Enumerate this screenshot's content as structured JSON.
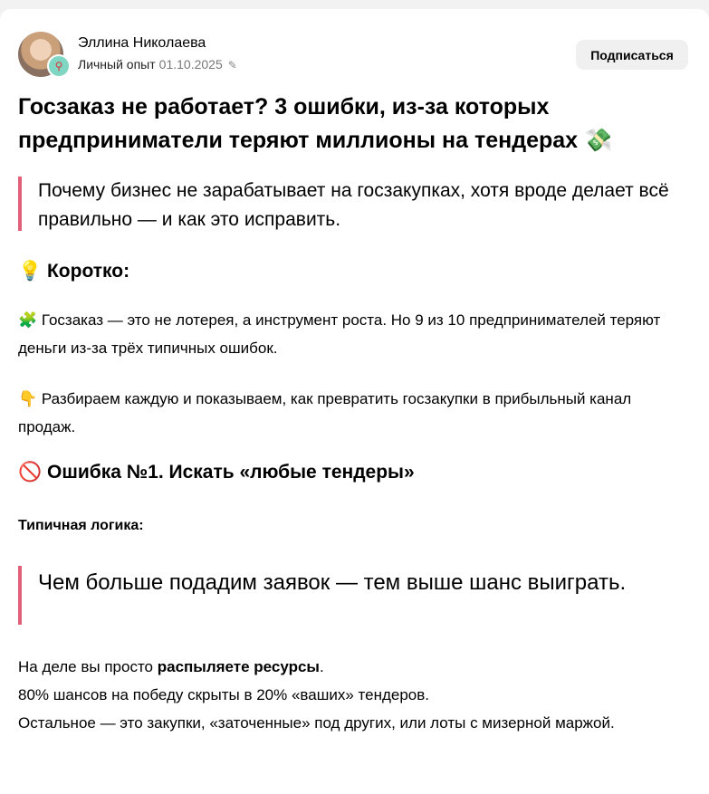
{
  "author": {
    "name": "Эллина Николаева",
    "category": "Личный опыт",
    "date": "01.10.2025"
  },
  "subscribe_label": "Подписаться",
  "title": "Госзаказ не работает? 3 ошибки, из-за которых предприниматели теряют миллионы на тендерах 💸",
  "lead": "Почему бизнес не зарабатывает на госзакупках, хотя вроде делает всё правильно — и как это исправить.",
  "short_heading": "💡 Коротко:",
  "short_p1": "🧩 Госзаказ — это не лотерея, а инструмент роста. Но 9 из 10 предпринимателей теряют деньги из-за трёх типичных ошибок.",
  "short_p2": "👇 Разбираем каждую и показываем, как превратить госзакупки в прибыльный канал продаж.",
  "error1_heading": "🚫 Ошибка №1. Искать «любые тендеры»",
  "logic_label": "Типичная логика:",
  "logic_quote": "Чем больше подадим заявок — тем выше шанс выиграть.",
  "final": {
    "pre": "На деле вы просто ",
    "bold": "распыляете ресурсы",
    "post": ".",
    "line2": "80% шансов на победу скрыты в 20% «ваших» тендеров.",
    "line3": "Остальное — это закупки, «заточенные» под других, или лоты с мизерной маржой."
  }
}
